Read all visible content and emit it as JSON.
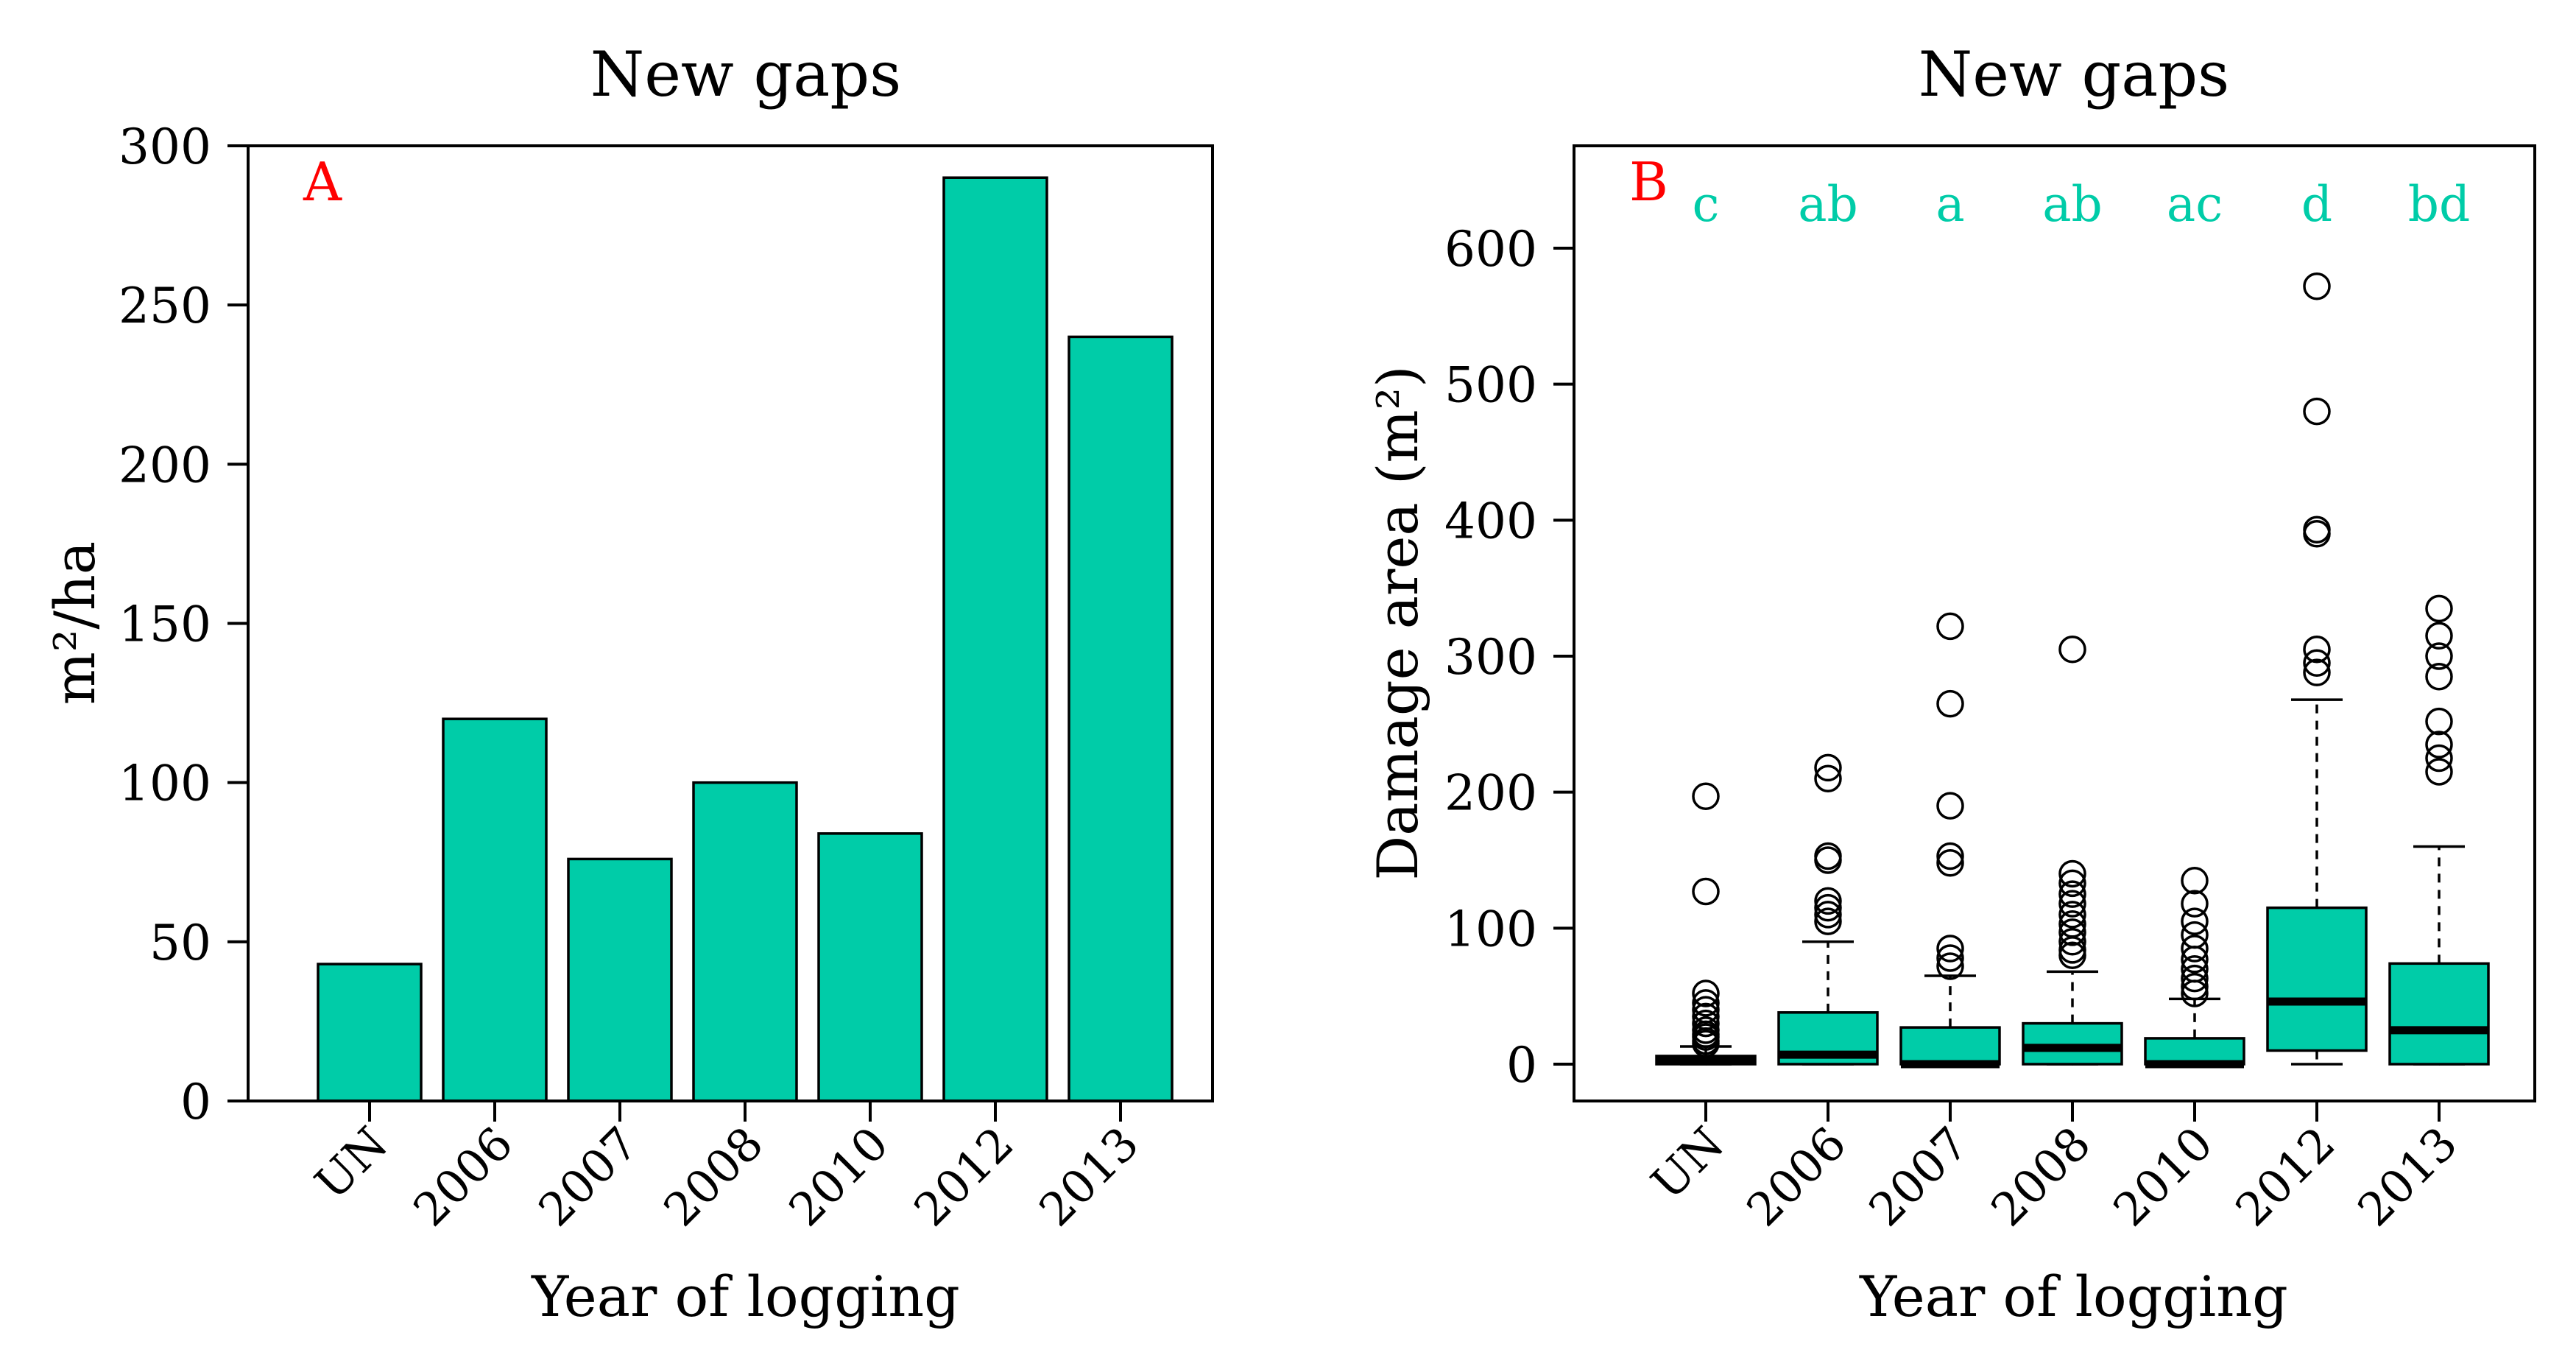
{
  "chart_data": [
    {
      "type": "bar",
      "panel_label": "A",
      "title": "New gaps",
      "xlabel": "Year of logging",
      "ylabel": "m²/ha",
      "categories": [
        "UN",
        "2006",
        "2007",
        "2008",
        "2010",
        "2012",
        "2013"
      ],
      "values": [
        43,
        120,
        76,
        100,
        84,
        290,
        240
      ],
      "ylim": [
        0,
        300
      ],
      "yticks": [
        "0",
        "50",
        "100",
        "150",
        "200",
        "250",
        "300"
      ],
      "bar_color": "#00CCA8",
      "panel_label_color": "#FF0000",
      "grid": false
    },
    {
      "type": "box",
      "panel_label": "B",
      "title": "New gaps",
      "xlabel": "Year of logging",
      "ylabel": "Damage area (m²)",
      "categories": [
        "UN",
        "2006",
        "2007",
        "2008",
        "2010",
        "2012",
        "2013"
      ],
      "groups": [
        "c",
        "ab",
        "a",
        "ab",
        "ac",
        "d",
        "bd"
      ],
      "ylim": [
        -30,
        630
      ],
      "yticks": [
        "0",
        "100",
        "200",
        "300",
        "400",
        "500",
        "600"
      ],
      "box_color": "#00CCA8",
      "group_label_color": "#00CCA8",
      "panel_label_color": "#FF0000",
      "grid": false,
      "boxes": [
        {
          "whisker_low": 0,
          "q1": 0,
          "median": 3,
          "q3": 6,
          "whisker_high": 13,
          "outliers": [
            197,
            127,
            52,
            45,
            40,
            35,
            30,
            25,
            22,
            20,
            17,
            15
          ]
        },
        {
          "whisker_low": 0,
          "q1": 0,
          "median": 7,
          "q3": 38,
          "whisker_high": 90,
          "outliers": [
            218,
            210,
            153,
            150,
            120,
            115,
            110,
            105
          ]
        },
        {
          "whisker_low": 0,
          "q1": 0,
          "median": 0,
          "q3": 27,
          "whisker_high": 65,
          "outliers": [
            322,
            265,
            190,
            153,
            148,
            85,
            78,
            72
          ]
        },
        {
          "whisker_low": 0,
          "q1": 0,
          "median": 12,
          "q3": 30,
          "whisker_high": 68,
          "outliers": [
            305,
            140,
            133,
            125,
            118,
            110,
            103,
            97,
            90,
            84,
            80
          ]
        },
        {
          "whisker_low": 0,
          "q1": 0,
          "median": 0,
          "q3": 19,
          "whisker_high": 48,
          "outliers": [
            135,
            118,
            105,
            95,
            85,
            77,
            70,
            63,
            57,
            52
          ]
        },
        {
          "whisker_low": 0,
          "q1": 10,
          "median": 46,
          "q3": 115,
          "whisker_high": 268,
          "outliers": [
            572,
            480,
            393,
            390,
            305,
            295,
            288
          ]
        },
        {
          "whisker_low": 0,
          "q1": 0,
          "median": 25,
          "q3": 74,
          "whisker_high": 160,
          "outliers": [
            335,
            315,
            300,
            285,
            252,
            235,
            225,
            215
          ]
        }
      ]
    }
  ]
}
